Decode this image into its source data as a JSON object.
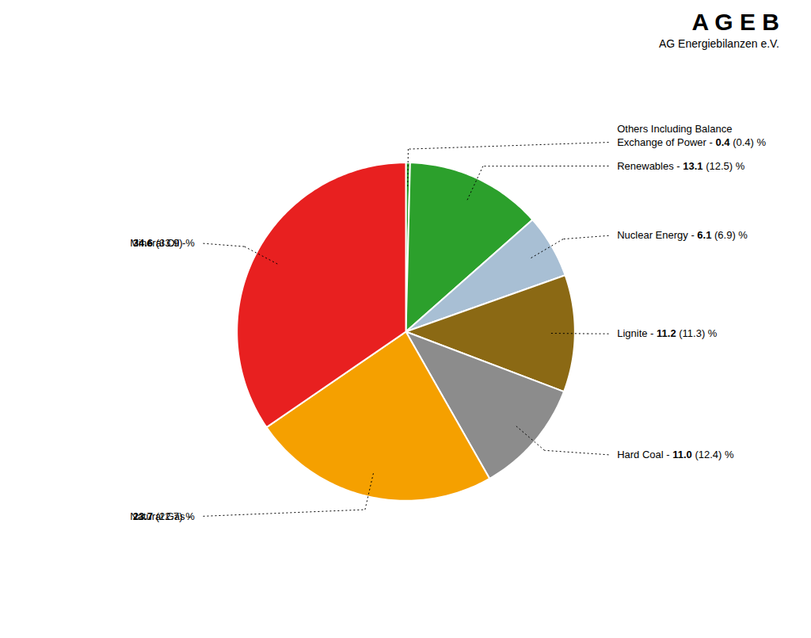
{
  "chart_data": {
    "type": "pie",
    "title": "A G E B",
    "subtitle": "AG Energiebilanzen e.V.",
    "categories": [
      "Others Including Balance\nExchange of Power -",
      "Renewables -",
      "Nuclear Energy -",
      "Lignite -",
      "Hard Coal -",
      "Natural Gas -",
      "Mineral Oil -"
    ],
    "values": [
      0.4,
      13.1,
      6.1,
      11.2,
      11.0,
      23.7,
      34.6
    ],
    "value_labels": [
      "0.4",
      "13.1",
      "6.1",
      "11.2",
      "11.0",
      "23.7",
      "34.6"
    ],
    "prev_values": [
      0.4,
      12.5,
      6.9,
      11.3,
      12.4,
      22.7,
      33.9
    ],
    "prev_value_labels": [
      "(0.4) %",
      "(12.5) %",
      "(6.9) %",
      "(11.3) %",
      "(12.4) %",
      "(22.7) %",
      "(33.9) %"
    ],
    "colors": [
      "#2ca02c",
      "#2ca02c",
      "#a8bfd4",
      "#8b6914",
      "#8c8c8c",
      "#f5a000",
      "#e82020"
    ],
    "data_labels": true
  }
}
